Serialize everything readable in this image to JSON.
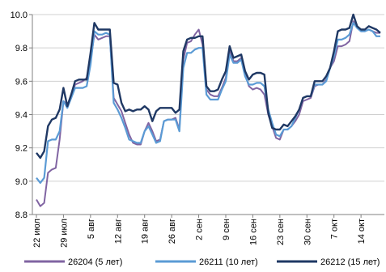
{
  "chart_data": {
    "type": "line",
    "ylim": [
      8.8,
      10.0
    ],
    "yticks": [
      "8.8",
      "9.0",
      "9.2",
      "9.4",
      "9.6",
      "9.8",
      "10.0"
    ],
    "yticks_values": [
      8.8,
      9.0,
      9.2,
      9.4,
      9.6,
      9.8,
      10.0
    ],
    "xticks": [
      "22 июл",
      "29 июл",
      "5 авг",
      "12 авг",
      "19 авг",
      "26 авг",
      "2 сен",
      "9 сен",
      "16 сен",
      "23 сен",
      "30 сен",
      "7 окт",
      "14 окт"
    ],
    "xticks_day_index": [
      0,
      7,
      14,
      21,
      28,
      35,
      42,
      49,
      56,
      63,
      70,
      77,
      84
    ],
    "x_day_max": 89,
    "grid": "horizontal",
    "legend_position": "bottom",
    "series": [
      {
        "name": "26204  (5 лет)",
        "color": "#8064a2",
        "points": [
          [
            0,
            8.89
          ],
          [
            1,
            8.85
          ],
          [
            2,
            8.87
          ],
          [
            3,
            9.05
          ],
          [
            4,
            9.07
          ],
          [
            5,
            9.08
          ],
          [
            6,
            9.25
          ],
          [
            7,
            9.48
          ],
          [
            8,
            9.46
          ],
          [
            9,
            9.5
          ],
          [
            10,
            9.58
          ],
          [
            11,
            9.59
          ],
          [
            12,
            9.6
          ],
          [
            13,
            9.62
          ],
          [
            14,
            9.72
          ],
          [
            15,
            9.88
          ],
          [
            16,
            9.85
          ],
          [
            17,
            9.86
          ],
          [
            18,
            9.87
          ],
          [
            19,
            9.87
          ],
          [
            20,
            9.5
          ],
          [
            21,
            9.46
          ],
          [
            22,
            9.42
          ],
          [
            23,
            9.35
          ],
          [
            24,
            9.28
          ],
          [
            25,
            9.23
          ],
          [
            26,
            9.22
          ],
          [
            27,
            9.22
          ],
          [
            28,
            9.3
          ],
          [
            29,
            9.35
          ],
          [
            30,
            9.3
          ],
          [
            31,
            9.24
          ],
          [
            32,
            9.25
          ],
          [
            33,
            9.36
          ],
          [
            34,
            9.37
          ],
          [
            35,
            9.37
          ],
          [
            36,
            9.38
          ],
          [
            37,
            9.31
          ],
          [
            38,
            9.73
          ],
          [
            39,
            9.83
          ],
          [
            40,
            9.84
          ],
          [
            41,
            9.88
          ],
          [
            42,
            9.91
          ],
          [
            43,
            9.82
          ],
          [
            44,
            9.55
          ],
          [
            45,
            9.52
          ],
          [
            46,
            9.51
          ],
          [
            47,
            9.51
          ],
          [
            48,
            9.56
          ],
          [
            49,
            9.62
          ],
          [
            50,
            9.79
          ],
          [
            51,
            9.72
          ],
          [
            52,
            9.72
          ],
          [
            53,
            9.74
          ],
          [
            54,
            9.64
          ],
          [
            55,
            9.57
          ],
          [
            56,
            9.55
          ],
          [
            57,
            9.56
          ],
          [
            58,
            9.55
          ],
          [
            59,
            9.52
          ],
          [
            60,
            9.4
          ],
          [
            61,
            9.33
          ],
          [
            62,
            9.26
          ],
          [
            63,
            9.25
          ],
          [
            64,
            9.31
          ],
          [
            65,
            9.31
          ],
          [
            66,
            9.33
          ],
          [
            67,
            9.36
          ],
          [
            68,
            9.4
          ],
          [
            69,
            9.48
          ],
          [
            70,
            9.49
          ],
          [
            71,
            9.5
          ],
          [
            72,
            9.57
          ],
          [
            73,
            9.58
          ],
          [
            74,
            9.58
          ],
          [
            75,
            9.61
          ],
          [
            76,
            9.68
          ],
          [
            77,
            9.72
          ],
          [
            78,
            9.81
          ],
          [
            79,
            9.81
          ],
          [
            80,
            9.82
          ],
          [
            81,
            9.84
          ],
          [
            82,
            9.96
          ],
          [
            83,
            9.92
          ],
          [
            84,
            9.9
          ],
          [
            85,
            9.9
          ],
          [
            86,
            9.91
          ],
          [
            87,
            9.9
          ],
          [
            88,
            9.89
          ],
          [
            89,
            9.89
          ]
        ]
      },
      {
        "name": "26211  (10 лет)",
        "color": "#5b9bd5",
        "points": [
          [
            0,
            9.02
          ],
          [
            1,
            8.99
          ],
          [
            2,
            9.02
          ],
          [
            3,
            9.24
          ],
          [
            4,
            9.25
          ],
          [
            5,
            9.25
          ],
          [
            6,
            9.3
          ],
          [
            7,
            9.48
          ],
          [
            8,
            9.44
          ],
          [
            9,
            9.5
          ],
          [
            10,
            9.56
          ],
          [
            11,
            9.56
          ],
          [
            12,
            9.56
          ],
          [
            13,
            9.57
          ],
          [
            14,
            9.7
          ],
          [
            15,
            9.9
          ],
          [
            16,
            9.88
          ],
          [
            17,
            9.88
          ],
          [
            18,
            9.89
          ],
          [
            19,
            9.88
          ],
          [
            20,
            9.47
          ],
          [
            21,
            9.43
          ],
          [
            22,
            9.38
          ],
          [
            23,
            9.32
          ],
          [
            24,
            9.25
          ],
          [
            25,
            9.24
          ],
          [
            26,
            9.23
          ],
          [
            27,
            9.23
          ],
          [
            28,
            9.3
          ],
          [
            29,
            9.33
          ],
          [
            30,
            9.28
          ],
          [
            31,
            9.23
          ],
          [
            32,
            9.24
          ],
          [
            33,
            9.36
          ],
          [
            34,
            9.37
          ],
          [
            35,
            9.37
          ],
          [
            36,
            9.37
          ],
          [
            37,
            9.3
          ],
          [
            38,
            9.68
          ],
          [
            39,
            9.77
          ],
          [
            40,
            9.77
          ],
          [
            41,
            9.79
          ],
          [
            42,
            9.8
          ],
          [
            43,
            9.8
          ],
          [
            44,
            9.52
          ],
          [
            45,
            9.49
          ],
          [
            46,
            9.49
          ],
          [
            47,
            9.49
          ],
          [
            48,
            9.55
          ],
          [
            49,
            9.6
          ],
          [
            50,
            9.76
          ],
          [
            51,
            9.71
          ],
          [
            52,
            9.71
          ],
          [
            53,
            9.73
          ],
          [
            54,
            9.63
          ],
          [
            55,
            9.58
          ],
          [
            56,
            9.58
          ],
          [
            57,
            9.59
          ],
          [
            58,
            9.59
          ],
          [
            59,
            9.57
          ],
          [
            60,
            9.43
          ],
          [
            61,
            9.35
          ],
          [
            62,
            9.28
          ],
          [
            63,
            9.27
          ],
          [
            64,
            9.31
          ],
          [
            65,
            9.31
          ],
          [
            66,
            9.33
          ],
          [
            67,
            9.38
          ],
          [
            68,
            9.43
          ],
          [
            69,
            9.5
          ],
          [
            70,
            9.51
          ],
          [
            71,
            9.51
          ],
          [
            72,
            9.58
          ],
          [
            73,
            9.58
          ],
          [
            74,
            9.58
          ],
          [
            75,
            9.6
          ],
          [
            76,
            9.68
          ],
          [
            77,
            9.75
          ],
          [
            78,
            9.85
          ],
          [
            79,
            9.85
          ],
          [
            80,
            9.86
          ],
          [
            81,
            9.88
          ],
          [
            82,
            9.95
          ],
          [
            83,
            9.92
          ],
          [
            84,
            9.9
          ],
          [
            85,
            9.9
          ],
          [
            86,
            9.91
          ],
          [
            87,
            9.9
          ],
          [
            88,
            9.87
          ],
          [
            89,
            9.87
          ]
        ]
      },
      {
        "name": "26212  (15 лет)",
        "color": "#1f3864",
        "points": [
          [
            0,
            9.17
          ],
          [
            1,
            9.14
          ],
          [
            2,
            9.18
          ],
          [
            3,
            9.33
          ],
          [
            4,
            9.37
          ],
          [
            5,
            9.38
          ],
          [
            6,
            9.43
          ],
          [
            7,
            9.56
          ],
          [
            8,
            9.45
          ],
          [
            9,
            9.52
          ],
          [
            10,
            9.6
          ],
          [
            11,
            9.61
          ],
          [
            12,
            9.61
          ],
          [
            13,
            9.61
          ],
          [
            14,
            9.77
          ],
          [
            15,
            9.95
          ],
          [
            16,
            9.91
          ],
          [
            17,
            9.91
          ],
          [
            18,
            9.91
          ],
          [
            19,
            9.91
          ],
          [
            20,
            9.59
          ],
          [
            21,
            9.58
          ],
          [
            22,
            9.47
          ],
          [
            23,
            9.42
          ],
          [
            24,
            9.43
          ],
          [
            25,
            9.42
          ],
          [
            26,
            9.43
          ],
          [
            27,
            9.43
          ],
          [
            28,
            9.45
          ],
          [
            29,
            9.43
          ],
          [
            30,
            9.36
          ],
          [
            31,
            9.42
          ],
          [
            32,
            9.44
          ],
          [
            33,
            9.44
          ],
          [
            34,
            9.44
          ],
          [
            35,
            9.44
          ],
          [
            36,
            9.41
          ],
          [
            37,
            9.43
          ],
          [
            38,
            9.78
          ],
          [
            39,
            9.85
          ],
          [
            40,
            9.86
          ],
          [
            41,
            9.86
          ],
          [
            42,
            9.87
          ],
          [
            43,
            9.87
          ],
          [
            44,
            9.57
          ],
          [
            45,
            9.54
          ],
          [
            46,
            9.54
          ],
          [
            47,
            9.55
          ],
          [
            48,
            9.61
          ],
          [
            49,
            9.66
          ],
          [
            50,
            9.81
          ],
          [
            51,
            9.74
          ],
          [
            52,
            9.75
          ],
          [
            53,
            9.76
          ],
          [
            54,
            9.66
          ],
          [
            55,
            9.61
          ],
          [
            56,
            9.64
          ],
          [
            57,
            9.65
          ],
          [
            58,
            9.65
          ],
          [
            59,
            9.64
          ],
          [
            60,
            9.41
          ],
          [
            61,
            9.32
          ],
          [
            62,
            9.31
          ],
          [
            63,
            9.31
          ],
          [
            64,
            9.34
          ],
          [
            65,
            9.33
          ],
          [
            66,
            9.36
          ],
          [
            67,
            9.39
          ],
          [
            68,
            9.43
          ],
          [
            69,
            9.5
          ],
          [
            70,
            9.51
          ],
          [
            71,
            9.51
          ],
          [
            72,
            9.6
          ],
          [
            73,
            9.6
          ],
          [
            74,
            9.6
          ],
          [
            75,
            9.63
          ],
          [
            76,
            9.68
          ],
          [
            77,
            9.78
          ],
          [
            78,
            9.9
          ],
          [
            79,
            9.91
          ],
          [
            80,
            9.91
          ],
          [
            81,
            9.92
          ],
          [
            82,
            10.0
          ],
          [
            83,
            9.93
          ],
          [
            84,
            9.91
          ],
          [
            85,
            9.91
          ],
          [
            86,
            9.93
          ],
          [
            87,
            9.92
          ],
          [
            88,
            9.91
          ],
          [
            89,
            9.89
          ]
        ]
      }
    ]
  }
}
